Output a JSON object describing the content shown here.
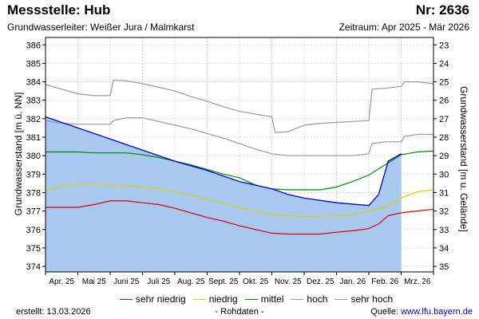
{
  "header": {
    "title": "Messstelle: Hub",
    "station_number": "Nr: 2636",
    "aquifer": "Grundwasserleiter:  Weißer Jura / Malmkarst",
    "period": "Zeitraum: Apr 2025 - Mär 2026"
  },
  "footer": {
    "created": "erstellt:  13.03.2026",
    "raw_data_note": "- Rohdaten -",
    "source_label": "Quelle: ",
    "source_link": "www.lfu.bayern.de"
  },
  "colors": {
    "fill": "#a8c8f0",
    "measured": "#0000cc",
    "sehr_niedrig": "#dd0000",
    "niedrig": "#e6d000",
    "mittel": "#008800",
    "hoch": "#999999",
    "sehr_hoch": "#999999",
    "grid": "#d8d8d8"
  },
  "chart_data": {
    "type": "line",
    "title": "Messstelle: Hub",
    "ylabel": "Grundwasserstand [m ü. NN]",
    "y2label": "Grundwasserstand [m u. Gelände]",
    "categories": [
      "Apr. 25",
      "Mai 25",
      "Juni 25",
      "Juli 25",
      "Aug. 25",
      "Sept. 25",
      "Okt. 25",
      "Nov. 25",
      "Dez. 25",
      "Jan. 26",
      "Feb. 26",
      "Mrz. 26"
    ],
    "ylim": [
      373.7,
      386.4
    ],
    "yticks": [
      374,
      375,
      376,
      377,
      378,
      379,
      380,
      381,
      382,
      383,
      384,
      385,
      386
    ],
    "y2ticks": [
      23,
      24,
      25,
      26,
      27,
      28,
      29,
      30,
      31,
      32,
      33,
      34,
      35
    ],
    "y2_offset": 409,
    "x_range": [
      0,
      12
    ],
    "grid": true,
    "legend_position": "bottom",
    "legend": [
      "sehr niedrig",
      "niedrig",
      "mittel",
      "hoch",
      "sehr hoch"
    ],
    "series": [
      {
        "name": "Rohdaten",
        "color_key": "measured",
        "filled": true,
        "x": [
          0,
          1,
          2,
          3,
          4,
          5,
          6,
          7,
          7.5,
          8,
          9,
          10,
          10.3,
          10.6,
          11
        ],
        "y": [
          382.1,
          381.5,
          380.9,
          380.3,
          379.7,
          379.2,
          378.6,
          378.2,
          377.9,
          377.7,
          377.45,
          377.3,
          377.9,
          379.7,
          380.1
        ]
      },
      {
        "name": "sehr niedrig",
        "color_key": "sehr_niedrig",
        "x": [
          0,
          0.3,
          0.6,
          1,
          1.5,
          2,
          2.5,
          3,
          3.5,
          4,
          4.5,
          5,
          5.5,
          6,
          6.5,
          7,
          7.5,
          8,
          8.5,
          9,
          9.3,
          9.6,
          10,
          10.3,
          10.6,
          11,
          11.5,
          12
        ],
        "y": [
          377.2,
          377.2,
          377.2,
          377.2,
          377.35,
          377.55,
          377.55,
          377.45,
          377.35,
          377.15,
          376.9,
          376.65,
          376.45,
          376.2,
          376.0,
          375.8,
          375.75,
          375.75,
          375.75,
          375.85,
          375.9,
          375.95,
          376.05,
          376.3,
          376.75,
          376.9,
          377.0,
          377.1
        ]
      },
      {
        "name": "niedrig",
        "color_key": "niedrig",
        "x": [
          0,
          0.5,
          1,
          1.5,
          2,
          2.5,
          3,
          3.5,
          4,
          4.5,
          5,
          5.5,
          6,
          6.5,
          7,
          7.5,
          8,
          8.5,
          9,
          9.5,
          10,
          10.5,
          11,
          11.5,
          12
        ],
        "y": [
          378.1,
          378.35,
          378.45,
          378.45,
          378.4,
          378.35,
          378.3,
          378.2,
          378.05,
          377.85,
          377.65,
          377.45,
          377.2,
          377.0,
          376.8,
          376.75,
          376.7,
          376.7,
          376.75,
          376.8,
          377.0,
          377.2,
          377.7,
          378.05,
          378.15
        ]
      },
      {
        "name": "mittel",
        "color_key": "mittel",
        "x": [
          0,
          0.5,
          1,
          1.5,
          2,
          2.5,
          3,
          3.5,
          4,
          4.5,
          5,
          5.5,
          6,
          6.5,
          7,
          7.5,
          8,
          8.5,
          9,
          9.5,
          10,
          10.5,
          11,
          11.5,
          12
        ],
        "y": [
          380.2,
          380.2,
          380.2,
          380.15,
          380.15,
          380.15,
          380.05,
          379.9,
          379.7,
          379.5,
          379.25,
          379.0,
          378.8,
          378.4,
          378.2,
          378.15,
          378.15,
          378.15,
          378.3,
          378.6,
          378.95,
          379.5,
          380.05,
          380.2,
          380.25
        ]
      },
      {
        "name": "hoch",
        "color_key": "hoch",
        "x": [
          0,
          0.5,
          1,
          1.5,
          2,
          2.1,
          2.5,
          3,
          3.5,
          4,
          4.5,
          5,
          5.5,
          6,
          6.5,
          7,
          7.5,
          8,
          8.5,
          9,
          9.5,
          10,
          10.1,
          10.5,
          11,
          11.1,
          11.5,
          12
        ],
        "y": [
          381.9,
          381.75,
          381.7,
          381.7,
          381.7,
          381.9,
          382.05,
          382.05,
          381.85,
          381.65,
          381.45,
          381.2,
          380.95,
          380.65,
          380.35,
          380.1,
          380.0,
          380.0,
          380.0,
          380.0,
          380.0,
          380.1,
          380.65,
          380.75,
          380.75,
          381.05,
          381.15,
          381.15
        ]
      },
      {
        "name": "sehr hoch",
        "color_key": "sehr_hoch",
        "x": [
          0,
          0.5,
          1,
          1.5,
          2,
          2.1,
          2.5,
          3,
          3.5,
          4,
          4.5,
          5,
          5.5,
          6,
          6.5,
          7,
          7.1,
          7.5,
          8,
          8.5,
          9,
          9.5,
          10,
          10.1,
          10.5,
          11,
          11.1,
          11.5,
          12
        ],
        "y": [
          383.85,
          383.6,
          383.35,
          383.25,
          383.25,
          384.1,
          384.05,
          383.9,
          383.7,
          383.5,
          383.2,
          382.95,
          382.65,
          382.4,
          382.25,
          382.1,
          381.25,
          381.3,
          381.65,
          381.75,
          381.8,
          381.85,
          381.9,
          383.6,
          383.65,
          383.75,
          384.0,
          384.0,
          383.9
        ]
      }
    ]
  }
}
